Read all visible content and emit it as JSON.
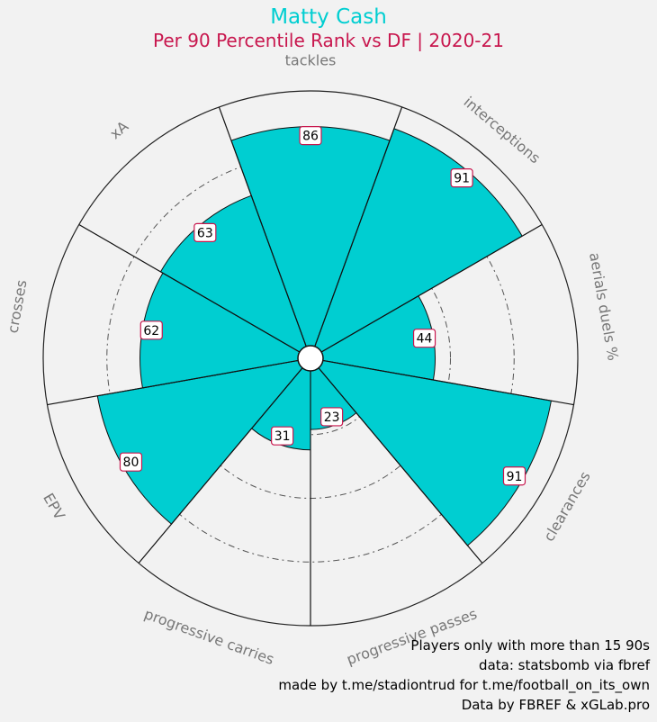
{
  "header": {
    "title": "Matty Cash",
    "subtitle": "Per 90 Percentile Rank vs DF | 2020-21"
  },
  "chart_data": {
    "type": "radar-bar",
    "title": "Matty Cash",
    "subtitle": "Per 90 Percentile Rank vs DF | 2020-21",
    "categories": [
      "tackles",
      "interceptions",
      "aerials duels %",
      "clearances",
      "progressive passes",
      "progressive carries",
      "EPV",
      "crosses",
      "xA"
    ],
    "values": [
      86,
      91,
      44,
      91,
      23,
      31,
      80,
      62,
      63
    ],
    "rlim": [
      0,
      100
    ],
    "colors": {
      "bar": "#00ced1",
      "background": "#f2f2f2",
      "label_border": "#c8174e",
      "axis_label": "#777777"
    }
  },
  "footer": {
    "lines": [
      "Players only with more than 15 90s",
      "data: statsbomb via fbref",
      "made by t.me/stadiontrud for t.me/football_on_its_own",
      "Data by FBREF & xGLab.pro"
    ]
  }
}
